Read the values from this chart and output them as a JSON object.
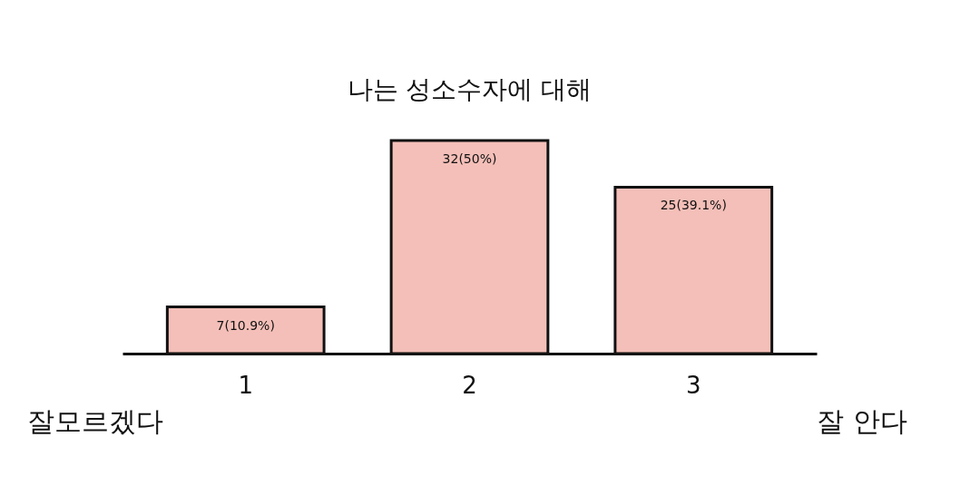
{
  "chart_data": {
    "type": "bar",
    "title": "나는 성소수자에 대해",
    "categories": [
      "1",
      "2",
      "3"
    ],
    "values": [
      7,
      32,
      25
    ],
    "value_labels": [
      "7(10.9%)",
      "32(50%)",
      "25(39.1%)"
    ],
    "color": "#f4bfb8",
    "annotations": [
      "잘모르겠다",
      "잘 안다"
    ]
  }
}
